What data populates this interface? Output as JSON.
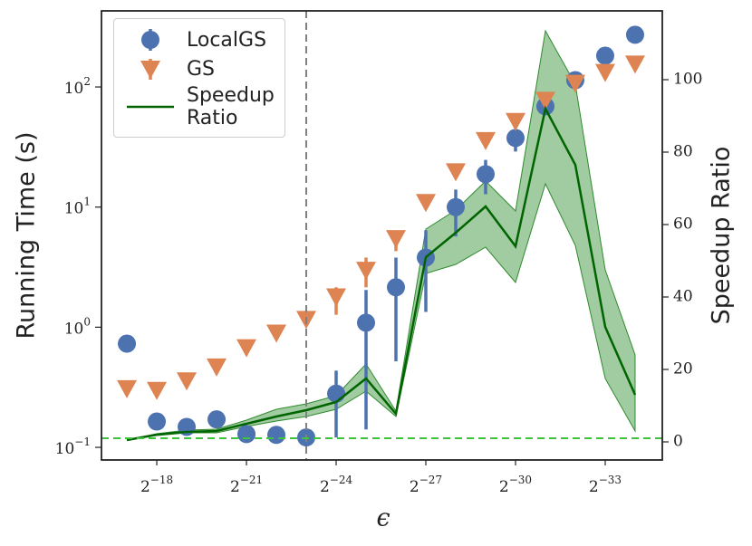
{
  "chart_data": {
    "type": "errorbar_dual",
    "xlabel": "ϵ",
    "ylabel": "Running Time (s)",
    "y2label": "Speedup Ratio",
    "x": [
      -17,
      -18,
      -19,
      -20,
      -21,
      -22,
      -23,
      -24,
      -25,
      -26,
      -27,
      -28,
      -29,
      -30,
      -31,
      -32,
      -33,
      -34
    ],
    "xscale": "log2",
    "xlim": [
      -16.15,
      -34.91
    ],
    "xticks": [
      {
        "value": -18,
        "label": {
          "base": "2",
          "exponent": "−18"
        }
      },
      {
        "value": -21,
        "label": {
          "base": "2",
          "exponent": "−21"
        }
      },
      {
        "value": -24,
        "label": {
          "base": "2",
          "exponent": "−24"
        }
      },
      {
        "value": -27,
        "label": {
          "base": "2",
          "exponent": "−27"
        }
      },
      {
        "value": -30,
        "label": {
          "base": "2",
          "exponent": "−30"
        }
      },
      {
        "value": -33,
        "label": {
          "base": "2",
          "exponent": "−33"
        }
      }
    ],
    "yscale": "log",
    "ylim": [
      0.0785,
      430
    ],
    "yticks": [
      {
        "value": 0.1,
        "label": {
          "base": "10",
          "exponent": "−1"
        }
      },
      {
        "value": 1,
        "label": {
          "base": "10",
          "exponent": "0"
        }
      },
      {
        "value": 10,
        "label": {
          "base": "10",
          "exponent": "1"
        }
      },
      {
        "value": 100,
        "label": {
          "base": "10",
          "exponent": "2"
        }
      }
    ],
    "y2lim": [
      -5,
      119
    ],
    "y2ticks": [
      0,
      20,
      40,
      60,
      80,
      100
    ],
    "legend": "upper left",
    "series": [
      {
        "name": "LocalGS",
        "color": "#4c72b0",
        "marker": "circle",
        "values": [
          0.73,
          0.164,
          0.148,
          0.171,
          0.129,
          0.127,
          0.121,
          0.28,
          1.09,
          2.15,
          3.8,
          10,
          18.8,
          37.6,
          69,
          114,
          182,
          272
        ],
        "lower": [
          null,
          null,
          null,
          null,
          null,
          null,
          null,
          0.121,
          0.141,
          0.52,
          1.34,
          5.7,
          12.8,
          29,
          null,
          null,
          null,
          null
        ],
        "upper": [
          null,
          null,
          null,
          null,
          null,
          null,
          null,
          0.435,
          2.04,
          3.8,
          6.4,
          14,
          24.7,
          41.6,
          null,
          null,
          null,
          null
        ]
      },
      {
        "name": "GS",
        "color": "#dd8452",
        "marker": "triangle_down",
        "values": [
          0.31,
          0.3,
          0.36,
          0.47,
          0.68,
          0.9,
          1.17,
          1.8,
          3.0,
          5.5,
          11,
          19.8,
          36,
          52,
          78,
          108,
          133,
          156
        ],
        "lower": [
          null,
          null,
          null,
          null,
          null,
          null,
          null,
          1.27,
          2.15,
          4.3,
          null,
          null,
          null,
          null,
          null,
          null,
          null,
          null
        ],
        "upper": [
          null,
          null,
          null,
          null,
          null,
          null,
          null,
          2.15,
          3.8,
          6.3,
          null,
          null,
          null,
          null,
          null,
          null,
          null,
          null
        ]
      },
      {
        "name": "Speedup Ratio",
        "color": "#006400",
        "band_color": "#2e8b2e",
        "axis": "y2",
        "marker": "line",
        "values": [
          0.5,
          2,
          2.75,
          3,
          5,
          7,
          8.75,
          11,
          17.5,
          7.75,
          51,
          57.75,
          65,
          54,
          92,
          76.5,
          31.75,
          13
        ],
        "lower": [
          0.5,
          1.75,
          2.5,
          2.5,
          4.25,
          5.75,
          7,
          9,
          14,
          7,
          46.5,
          49,
          53.75,
          44,
          71.25,
          54.25,
          17.5,
          3
        ],
        "upper": [
          0.5,
          2.25,
          3.25,
          3.5,
          6,
          9,
          10.5,
          12.75,
          21.5,
          8.5,
          58.75,
          64,
          72,
          63.75,
          113.5,
          98.75,
          47.5,
          24
        ]
      }
    ],
    "reference_lines": [
      {
        "axis": "x",
        "value": -23,
        "color": "#808080"
      },
      {
        "axis": "y2",
        "value": 1,
        "color": "#3dc43d"
      }
    ]
  }
}
